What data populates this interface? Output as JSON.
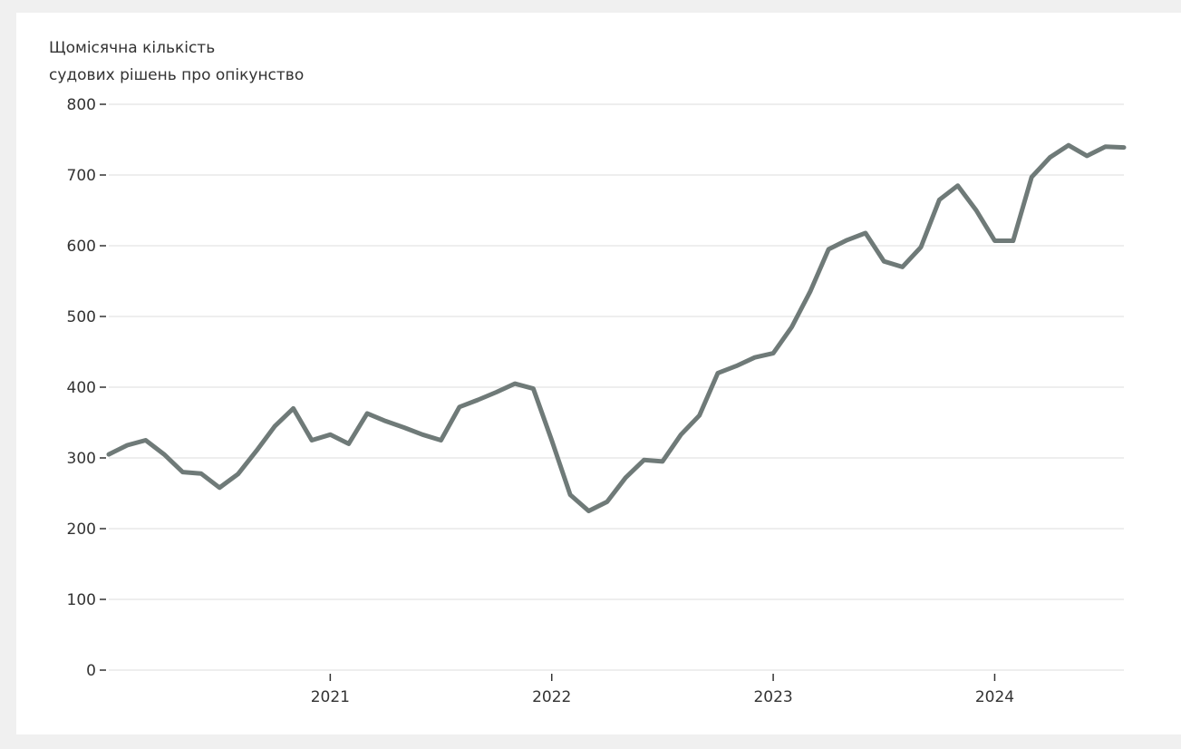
{
  "chart_data": {
    "type": "line",
    "title_lines": [
      "Щомісячна кількість",
      "судових рішень про опікунство"
    ],
    "xlabel": "",
    "ylabel": "",
    "ylim": [
      0,
      800
    ],
    "yticks": [
      0,
      100,
      200,
      300,
      400,
      500,
      600,
      700,
      800
    ],
    "xticks": [
      {
        "label": "2021",
        "date": "2021-01"
      },
      {
        "label": "2022",
        "date": "2022-01"
      },
      {
        "label": "2023",
        "date": "2023-01"
      },
      {
        "label": "2024",
        "date": "2024-01"
      }
    ],
    "xlim": [
      "2020-01",
      "2024-08"
    ],
    "grid": true,
    "line_color": "#6f7a78",
    "series": [
      {
        "x": [
          "2020-01",
          "2020-02",
          "2020-03",
          "2020-04",
          "2020-05",
          "2020-06",
          "2020-07",
          "2020-08",
          "2020-09",
          "2020-10",
          "2020-11",
          "2020-12",
          "2021-01",
          "2021-02",
          "2021-03",
          "2021-04",
          "2021-05",
          "2021-06",
          "2021-07",
          "2021-08",
          "2021-09",
          "2021-10",
          "2021-11",
          "2021-12",
          "2022-01",
          "2022-02",
          "2022-03",
          "2022-04",
          "2022-05",
          "2022-06",
          "2022-07",
          "2022-08",
          "2022-09",
          "2022-10",
          "2022-11",
          "2022-12",
          "2023-01",
          "2023-02",
          "2023-03",
          "2023-04",
          "2023-05",
          "2023-06",
          "2023-07",
          "2023-08",
          "2023-09",
          "2023-10",
          "2023-11",
          "2023-12",
          "2024-01",
          "2024-02",
          "2024-03",
          "2024-04",
          "2024-05",
          "2024-06",
          "2024-07",
          "2024-08"
        ],
        "values": [
          305,
          318,
          325,
          305,
          280,
          278,
          258,
          277,
          310,
          345,
          370,
          325,
          333,
          320,
          363,
          352,
          343,
          333,
          325,
          372,
          382,
          393,
          405,
          398,
          325,
          248,
          225,
          238,
          272,
          297,
          295,
          333,
          360,
          420,
          430,
          442,
          448,
          485,
          535,
          595,
          608,
          618,
          578,
          570,
          598,
          665,
          685,
          650,
          607,
          607,
          697,
          725,
          742,
          727,
          740,
          739
        ]
      }
    ]
  }
}
